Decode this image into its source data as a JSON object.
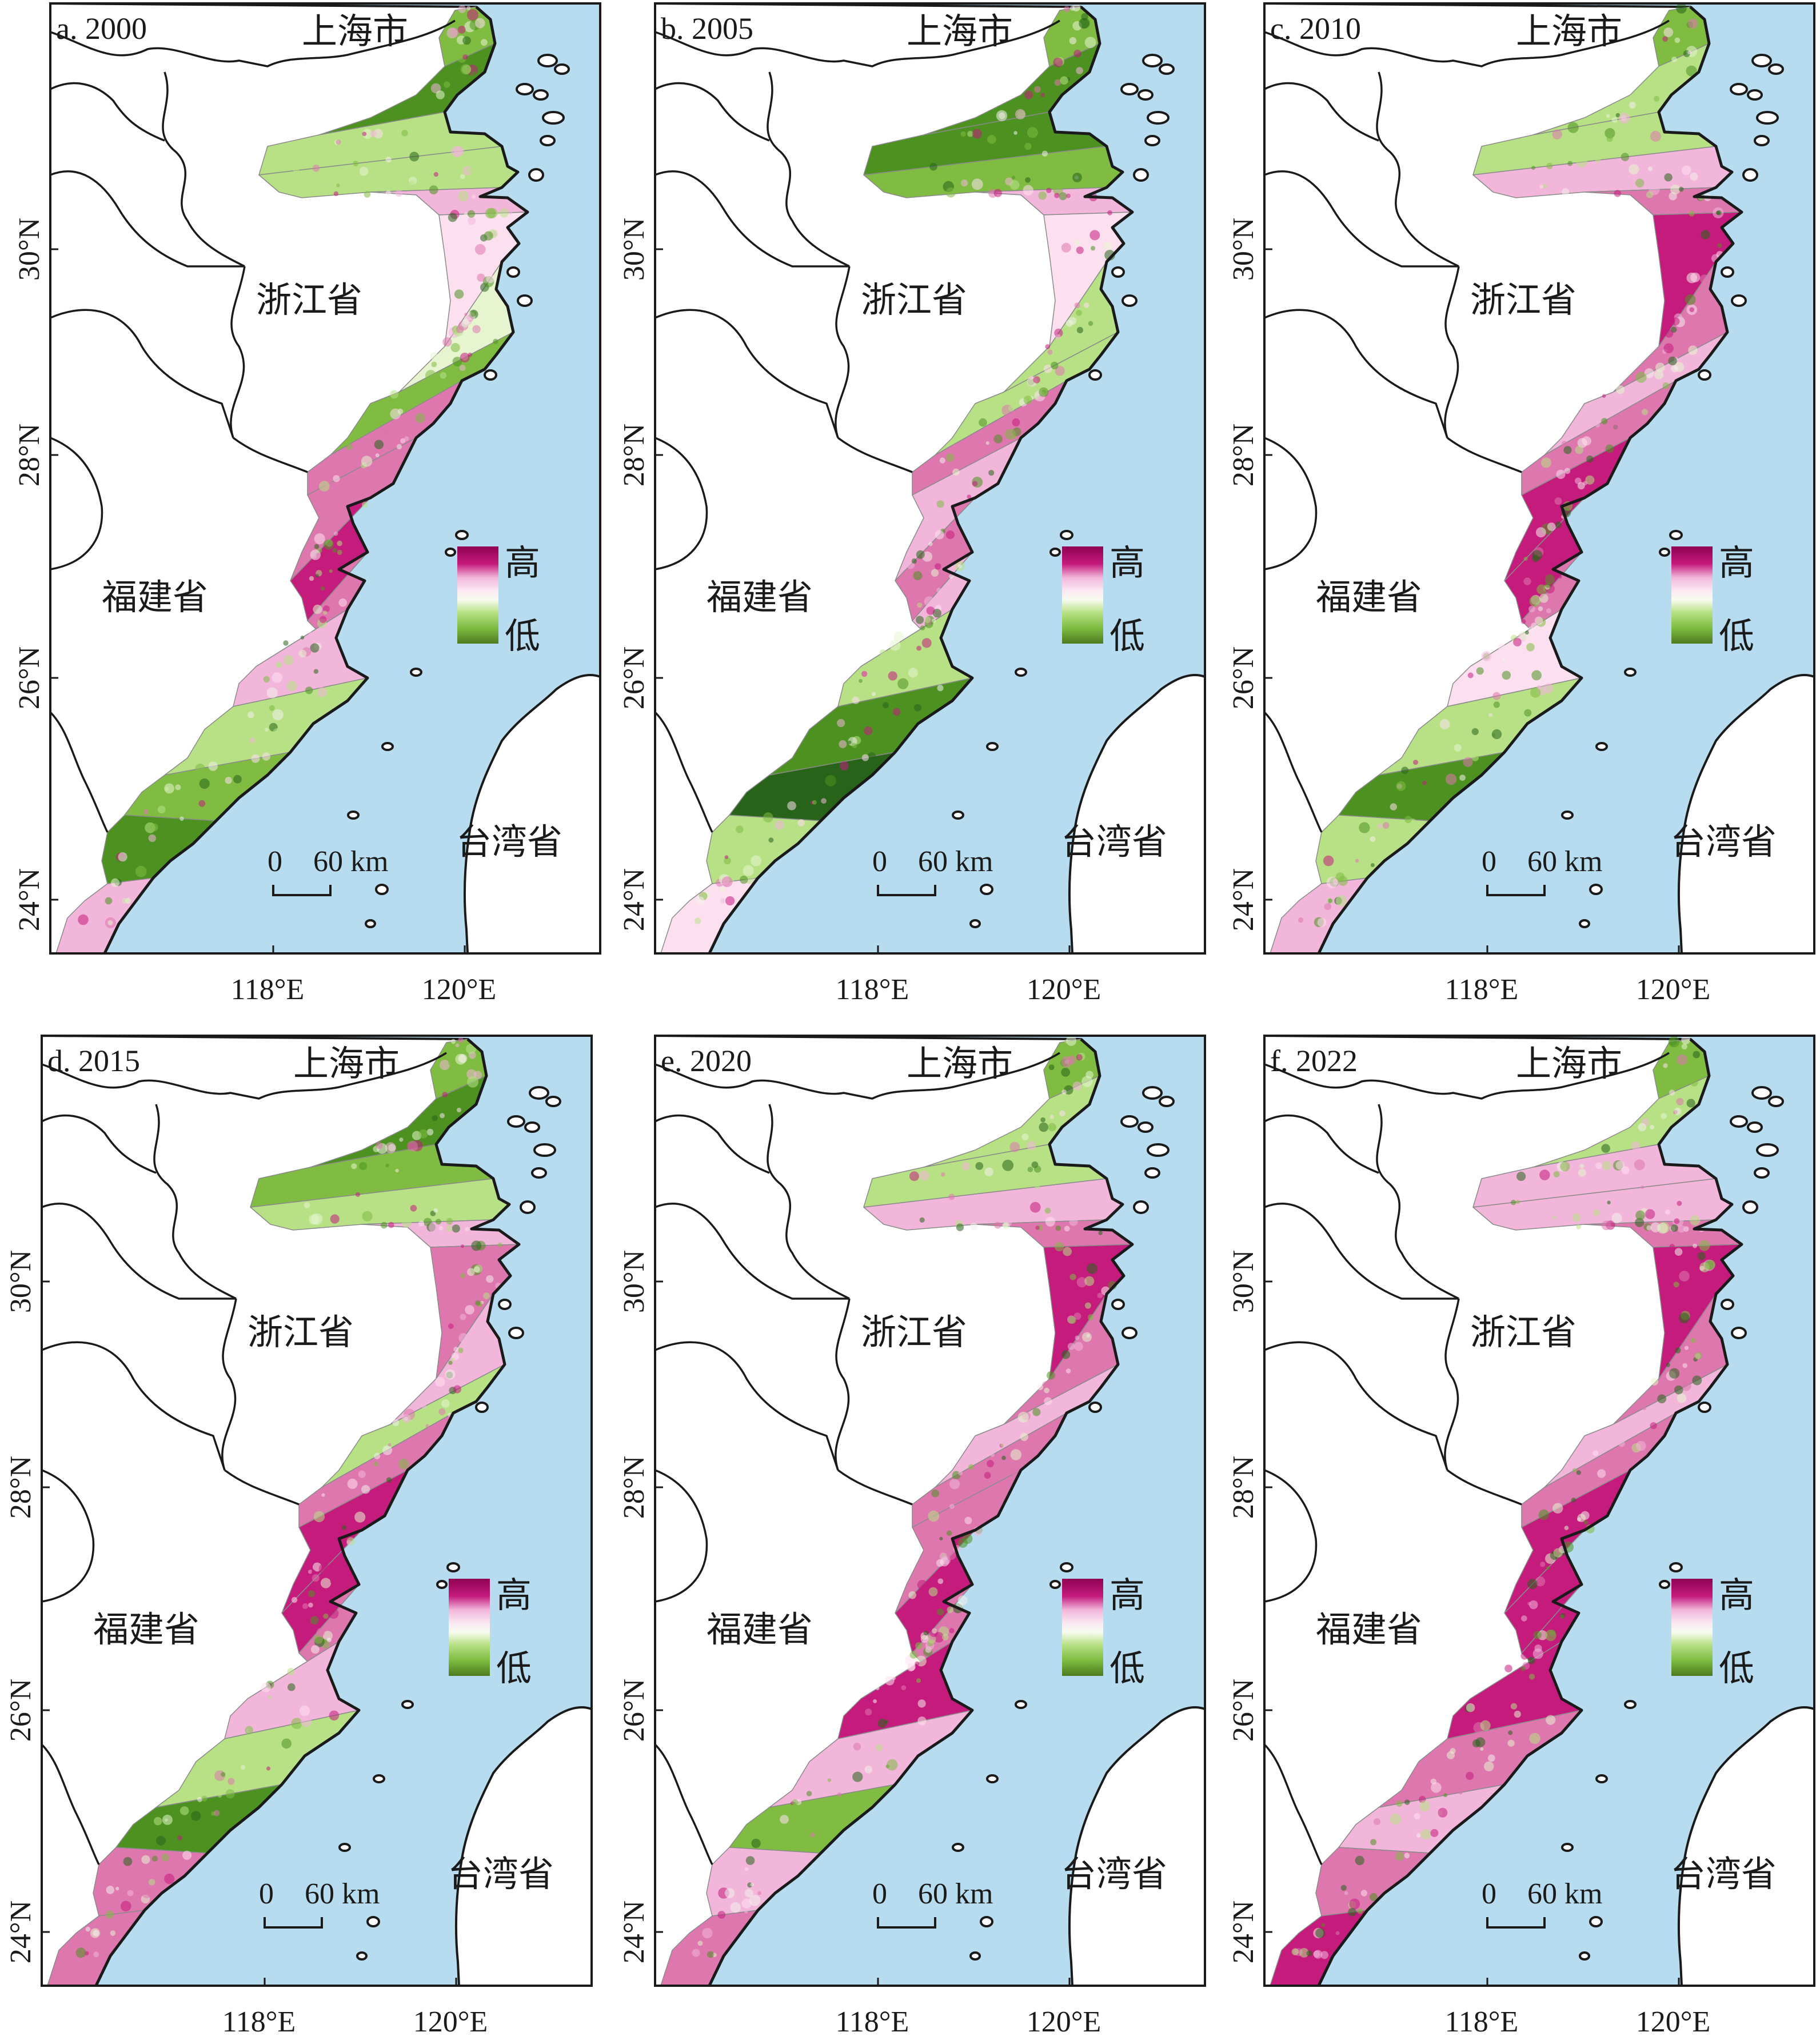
{
  "figure": {
    "panels": [
      {
        "title": "a. 2000",
        "year": 2000,
        "pattern": "a"
      },
      {
        "title": "b. 2005",
        "year": 2005,
        "pattern": "b"
      },
      {
        "title": "c. 2010",
        "year": 2010,
        "pattern": "c"
      },
      {
        "title": "d. 2015",
        "year": 2015,
        "pattern": "d"
      },
      {
        "title": "e. 2020",
        "year": 2020,
        "pattern": "e"
      },
      {
        "title": "f. 2022",
        "year": 2022,
        "pattern": "f"
      }
    ],
    "place_labels": {
      "shanghai": "上海市",
      "zhejiang": "浙江省",
      "fujian": "福建省",
      "taiwan": "台湾省"
    },
    "lat_ticks": [
      "30°N",
      "28°N",
      "26°N",
      "24°N"
    ],
    "lon_ticks": [
      "118°E",
      "120°E"
    ],
    "scale_bar": {
      "zero": "0",
      "value": "60 km"
    },
    "legend": {
      "high": "高",
      "low": "低",
      "colors": [
        "#8e0152",
        "#c51b7d",
        "#de77ae",
        "#f1b6da",
        "#fde0ef",
        "#f7f7f7",
        "#e6f5d0",
        "#b8e186",
        "#7fbc41",
        "#4d9221",
        "#276419"
      ]
    },
    "colors": {
      "sea": "#b7dcef",
      "land": "#ffffff",
      "outline": "#1a1a1a"
    }
  }
}
